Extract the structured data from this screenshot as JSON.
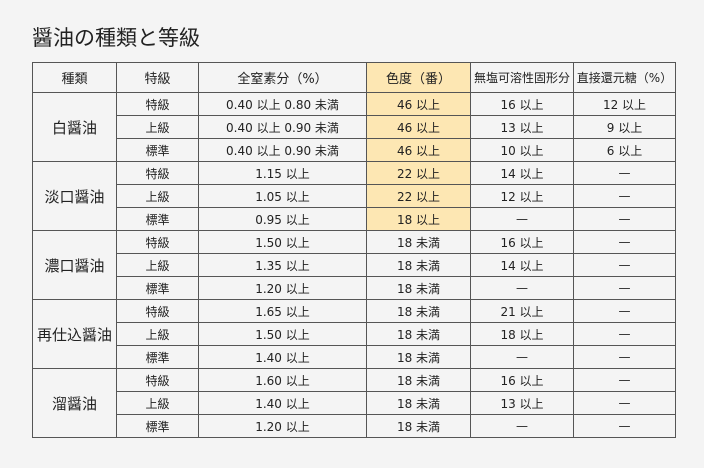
{
  "title": "醤油の種類と等級",
  "highlight_color": "#fde7b3",
  "headers": [
    "種類",
    "特級",
    "全窒素分（%）",
    "色度（番）",
    "無塩可溶性固形分",
    "直接還元糖（%）"
  ],
  "groups": [
    {
      "kind": "白醤油",
      "rows": [
        {
          "grade": "特級",
          "nitrogen": "0.40 以上 0.80 未満",
          "color": "46 以上",
          "solids": "16 以上",
          "sugar": "12 以上",
          "highlight": true
        },
        {
          "grade": "上級",
          "nitrogen": "0.40 以上 0.90 未満",
          "color": "46 以上",
          "solids": "13 以上",
          "sugar": "9 以上",
          "highlight": true
        },
        {
          "grade": "標準",
          "nitrogen": "0.40 以上 0.90 未満",
          "color": "46 以上",
          "solids": "10 以上",
          "sugar": "6 以上",
          "highlight": true
        }
      ]
    },
    {
      "kind": "淡口醤油",
      "rows": [
        {
          "grade": "特級",
          "nitrogen": "1.15 以上",
          "color": "22 以上",
          "solids": "14 以上",
          "sugar": "—",
          "highlight": true
        },
        {
          "grade": "上級",
          "nitrogen": "1.05 以上",
          "color": "22 以上",
          "solids": "12 以上",
          "sugar": "—",
          "highlight": true
        },
        {
          "grade": "標準",
          "nitrogen": "0.95 以上",
          "color": "18 以上",
          "solids": "—",
          "sugar": "—",
          "highlight": true
        }
      ]
    },
    {
      "kind": "濃口醤油",
      "rows": [
        {
          "grade": "特級",
          "nitrogen": "1.50 以上",
          "color": "18 未満",
          "solids": "16 以上",
          "sugar": "—",
          "highlight": false
        },
        {
          "grade": "上級",
          "nitrogen": "1.35 以上",
          "color": "18 未満",
          "solids": "14 以上",
          "sugar": "—",
          "highlight": false
        },
        {
          "grade": "標準",
          "nitrogen": "1.20 以上",
          "color": "18 未満",
          "solids": "—",
          "sugar": "—",
          "highlight": false
        }
      ]
    },
    {
      "kind": "再仕込醤油",
      "rows": [
        {
          "grade": "特級",
          "nitrogen": "1.65 以上",
          "color": "18 未満",
          "solids": "21 以上",
          "sugar": "—",
          "highlight": false
        },
        {
          "grade": "上級",
          "nitrogen": "1.50 以上",
          "color": "18 未満",
          "solids": "18 以上",
          "sugar": "—",
          "highlight": false
        },
        {
          "grade": "標準",
          "nitrogen": "1.40 以上",
          "color": "18 未満",
          "solids": "—",
          "sugar": "—",
          "highlight": false
        }
      ]
    },
    {
      "kind": "溜醤油",
      "rows": [
        {
          "grade": "特級",
          "nitrogen": "1.60 以上",
          "color": "18 未満",
          "solids": "16 以上",
          "sugar": "—",
          "highlight": false
        },
        {
          "grade": "上級",
          "nitrogen": "1.40 以上",
          "color": "18 未満",
          "solids": "13 以上",
          "sugar": "—",
          "highlight": false
        },
        {
          "grade": "標準",
          "nitrogen": "1.20 以上",
          "color": "18 未満",
          "solids": "—",
          "sugar": "—",
          "highlight": false
        }
      ]
    }
  ]
}
